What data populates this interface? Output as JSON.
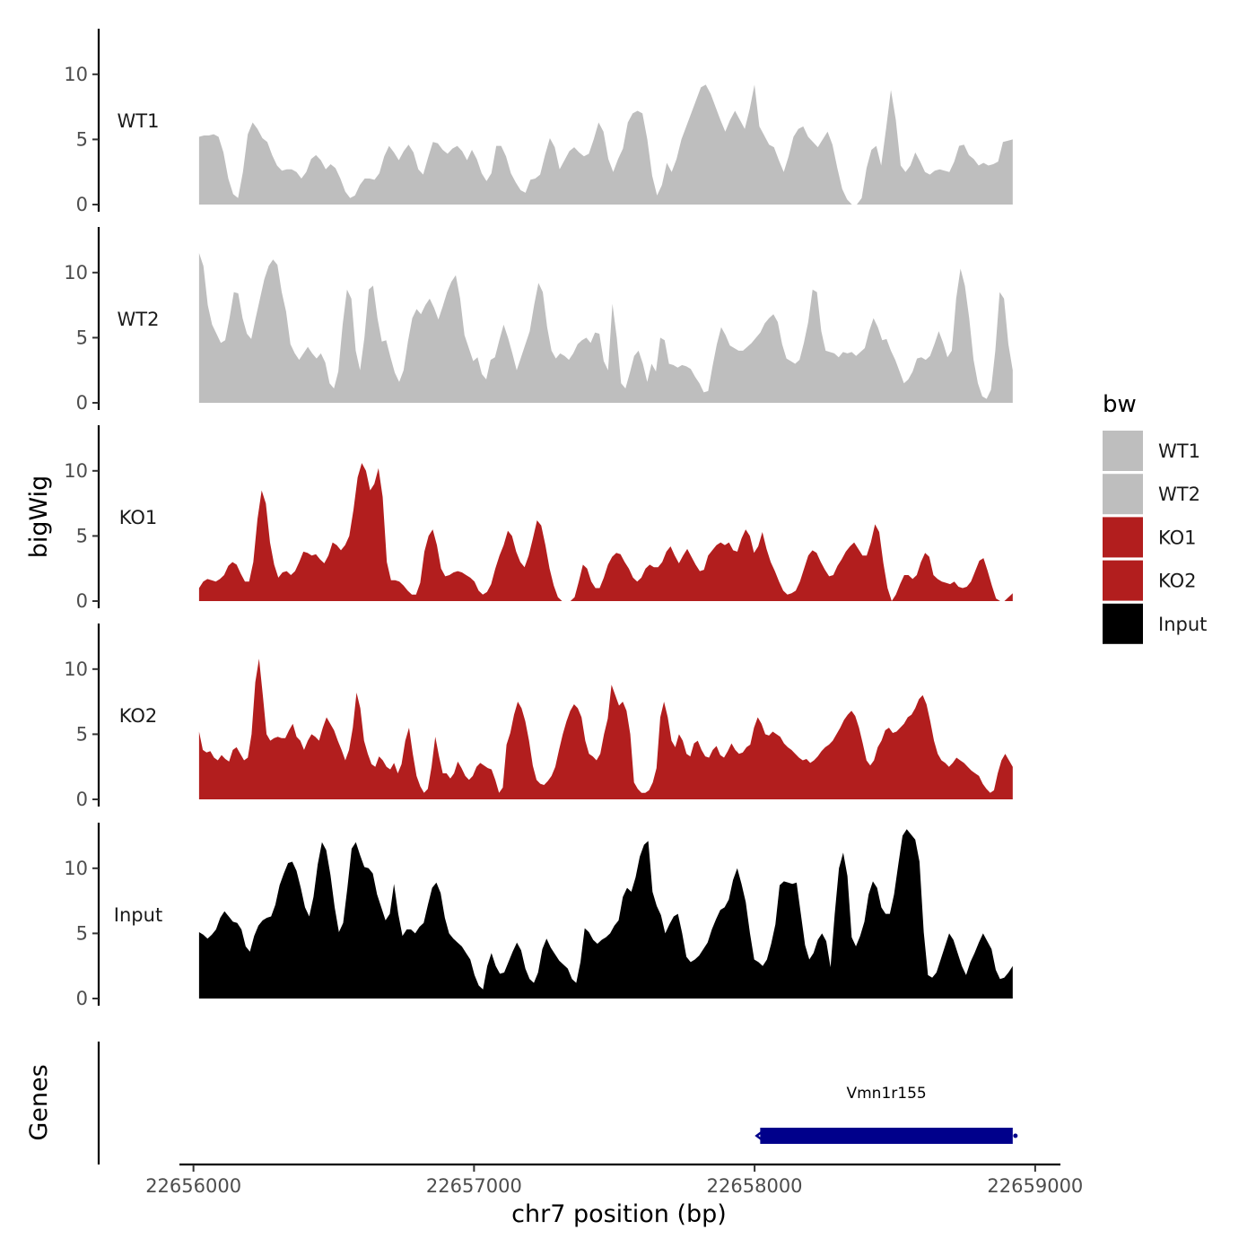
{
  "chart_data": {
    "type": "area",
    "chromosome": "chr7",
    "xlabel": "chr7 position (bp)",
    "ylabel": "bigWig",
    "genes_axis_label": "Genes",
    "xlim": [
      22655950,
      22659090
    ],
    "x_ticks": [
      22656000,
      22657000,
      22658000,
      22659000
    ],
    "x_tick_labels": [
      "22656000",
      "22657000",
      "22658000",
      "22659000"
    ],
    "ylim": [
      0,
      13.5
    ],
    "y_ticks": [
      0,
      5,
      10
    ],
    "y_tick_labels": [
      "0",
      "5",
      "10"
    ],
    "x_start": 22656020,
    "x_end": 22658920,
    "legend": {
      "title": "bw",
      "position": "right",
      "entries": [
        {
          "label": "WT1",
          "color": "#bebebe"
        },
        {
          "label": "WT2",
          "color": "#bebebe"
        },
        {
          "label": "KO1",
          "color": "#b21e1e"
        },
        {
          "label": "KO2",
          "color": "#b21e1e"
        },
        {
          "label": "Input",
          "color": "#000000"
        }
      ]
    },
    "series": [
      {
        "name": "WT1",
        "color": "#bebebe",
        "values": [
          5.2,
          5.3,
          5.3,
          5.4,
          5.2,
          4.0,
          2.0,
          0.8,
          0.5,
          2.5,
          5.4,
          6.3,
          5.8,
          5.1,
          4.8,
          3.8,
          3.0,
          2.6,
          2.7,
          2.7,
          2.5,
          2.0,
          2.5,
          3.5,
          3.8,
          3.4,
          2.7,
          3.1,
          2.8,
          2.0,
          1.0,
          0.5,
          0.7,
          1.5,
          2.0,
          2.0,
          1.9,
          2.4,
          3.7,
          4.5,
          4.0,
          3.4,
          4.1,
          4.6,
          4.0,
          2.7,
          2.3,
          3.6,
          4.8,
          4.7,
          4.2,
          3.9,
          4.3,
          4.5,
          4.1,
          3.4,
          4.2,
          3.5,
          2.4,
          1.8,
          2.4,
          4.5,
          4.5,
          3.7,
          2.4,
          1.7,
          1.1,
          0.9,
          1.9,
          2.0,
          2.3,
          3.8,
          5.1,
          4.4,
          2.7,
          3.4,
          4.1,
          4.4,
          4.0,
          3.7,
          3.9,
          5.0,
          6.3,
          5.6,
          3.5,
          2.5,
          3.5,
          4.3,
          6.3,
          7.0,
          7.2,
          7.0,
          5.0,
          2.2,
          0.7,
          1.5,
          3.2,
          2.5,
          3.5,
          5.0,
          6.0,
          7.0,
          8.0,
          9.0,
          9.2,
          8.5,
          7.5,
          6.5,
          5.6,
          6.5,
          7.2,
          6.5,
          5.8,
          7.3,
          9.2,
          6.0,
          5.3,
          4.6,
          4.4,
          3.4,
          2.5,
          3.7,
          5.2,
          5.8,
          6.0,
          5.2,
          4.8,
          4.4,
          5.0,
          5.6,
          4.6,
          2.8,
          1.2,
          0.4,
          0.0,
          0.0,
          0.5,
          2.8,
          4.2,
          4.5,
          3.0,
          5.8,
          8.8,
          6.5,
          3.0,
          2.5,
          3.0,
          4.0,
          3.3,
          2.5,
          2.3,
          2.6,
          2.7,
          2.6,
          2.5,
          3.3,
          4.5,
          4.6,
          3.8,
          3.5,
          3.0,
          3.2,
          3.0,
          3.1,
          3.3,
          4.8,
          4.9,
          5.0
        ]
      },
      {
        "name": "WT2",
        "color": "#bebebe",
        "values": [
          11.5,
          10.5,
          7.5,
          6.0,
          5.3,
          4.6,
          4.8,
          6.5,
          8.5,
          8.4,
          6.5,
          5.3,
          4.9,
          6.5,
          8.0,
          9.5,
          10.5,
          11.0,
          10.6,
          8.5,
          7.0,
          4.5,
          3.8,
          3.3,
          3.8,
          4.3,
          3.8,
          3.4,
          3.8,
          3.1,
          1.5,
          1.1,
          2.4,
          6.0,
          8.7,
          8.0,
          4.0,
          2.5,
          5.0,
          8.7,
          9.0,
          6.5,
          4.7,
          4.8,
          3.5,
          2.3,
          1.6,
          2.5,
          4.7,
          6.5,
          7.2,
          6.8,
          7.5,
          8.0,
          7.3,
          6.4,
          7.4,
          8.5,
          9.3,
          9.8,
          8.0,
          5.2,
          4.2,
          3.2,
          3.5,
          2.2,
          1.8,
          3.3,
          3.5,
          4.8,
          6.0,
          5.0,
          3.8,
          2.5,
          3.5,
          4.5,
          5.5,
          7.5,
          9.2,
          8.5,
          5.8,
          4.0,
          3.4,
          3.8,
          3.6,
          3.3,
          3.8,
          4.5,
          4.8,
          5.0,
          4.6,
          5.4,
          5.3,
          3.2,
          2.5,
          7.6,
          5.0,
          1.5,
          1.1,
          2.3,
          3.6,
          4.0,
          3.0,
          1.6,
          3.0,
          2.4,
          5.0,
          4.8,
          3.0,
          2.9,
          2.7,
          2.9,
          2.8,
          2.6,
          2.0,
          1.5,
          0.8,
          0.9,
          2.8,
          4.5,
          5.8,
          5.2,
          4.4,
          4.2,
          4.0,
          4.0,
          4.3,
          4.6,
          5.0,
          5.4,
          6.1,
          6.5,
          6.8,
          6.2,
          4.5,
          3.4,
          3.2,
          3.0,
          3.3,
          4.6,
          6.2,
          8.7,
          8.5,
          5.5,
          4.0,
          3.9,
          3.8,
          3.5,
          3.9,
          3.8,
          3.9,
          3.6,
          3.9,
          4.2,
          5.5,
          6.5,
          5.8,
          4.8,
          4.9,
          4.0,
          3.3,
          2.4,
          1.5,
          1.8,
          2.4,
          3.4,
          3.5,
          3.3,
          3.6,
          4.5,
          5.5,
          4.6,
          3.5,
          4.0,
          8.0,
          10.3,
          9.0,
          6.5,
          3.3,
          1.5,
          0.5,
          0.3,
          1.0,
          4.0,
          8.5,
          8.0,
          4.5,
          2.5
        ]
      },
      {
        "name": "KO1",
        "color": "#b21e1e",
        "values": [
          1.0,
          1.5,
          1.7,
          1.6,
          1.5,
          1.7,
          2.0,
          2.7,
          3.0,
          2.8,
          2.1,
          1.5,
          1.5,
          3.0,
          6.3,
          8.5,
          7.5,
          4.5,
          2.8,
          1.8,
          2.2,
          2.3,
          2.0,
          2.3,
          3.0,
          3.8,
          3.7,
          3.5,
          3.6,
          3.2,
          2.9,
          3.5,
          4.5,
          4.3,
          3.9,
          4.3,
          5.0,
          7.0,
          9.5,
          10.6,
          10.0,
          8.5,
          9.0,
          10.2,
          8.0,
          3.0,
          1.6,
          1.6,
          1.5,
          1.2,
          0.8,
          0.5,
          0.5,
          1.4,
          3.8,
          5.0,
          5.5,
          4.3,
          2.5,
          1.9,
          2.0,
          2.2,
          2.3,
          2.2,
          2.0,
          1.8,
          1.5,
          0.8,
          0.5,
          0.7,
          1.3,
          2.5,
          3.5,
          4.3,
          5.4,
          5.0,
          3.8,
          3.0,
          2.6,
          3.5,
          4.8,
          6.2,
          5.8,
          4.3,
          2.5,
          1.2,
          0.3,
          0.0,
          0.0,
          0.0,
          0.3,
          1.5,
          2.8,
          2.5,
          1.5,
          1.0,
          1.0,
          1.8,
          2.8,
          3.4,
          3.7,
          3.6,
          3.0,
          2.5,
          1.8,
          1.5,
          1.8,
          2.5,
          2.8,
          2.6,
          2.6,
          3.0,
          3.8,
          4.2,
          3.5,
          2.9,
          3.5,
          4.0,
          3.4,
          2.8,
          2.3,
          2.4,
          3.5,
          3.9,
          4.3,
          4.5,
          4.3,
          4.5,
          3.9,
          3.8,
          4.8,
          5.5,
          5.0,
          3.7,
          4.2,
          5.3,
          4.0,
          3.0,
          2.3,
          1.5,
          0.8,
          0.5,
          0.6,
          0.8,
          1.5,
          2.5,
          3.5,
          3.9,
          3.7,
          3.0,
          2.4,
          1.9,
          2.0,
          2.7,
          3.2,
          3.8,
          4.2,
          4.5,
          4.0,
          3.5,
          3.5,
          4.5,
          5.9,
          5.3,
          2.9,
          1.0,
          0.0,
          0.5,
          1.3,
          2.0,
          2.0,
          1.7,
          2.0,
          3.0,
          3.7,
          3.4,
          2.0,
          1.7,
          1.5,
          1.4,
          1.3,
          1.5,
          1.1,
          1.0,
          1.1,
          1.5,
          2.3,
          3.1,
          3.3,
          2.3,
          1.2,
          0.2,
          0.0,
          0.0,
          0.3,
          0.6
        ]
      },
      {
        "name": "KO2",
        "color": "#b21e1e",
        "values": [
          5.2,
          3.8,
          3.6,
          3.7,
          3.2,
          3.0,
          3.4,
          3.1,
          2.9,
          3.8,
          4.0,
          3.5,
          3.0,
          3.2,
          5.0,
          9.0,
          10.8,
          8.0,
          5.0,
          4.5,
          4.7,
          4.8,
          4.7,
          4.7,
          5.3,
          5.8,
          4.8,
          4.5,
          3.8,
          4.5,
          5.0,
          4.8,
          4.5,
          5.5,
          6.3,
          5.8,
          5.3,
          4.5,
          3.8,
          3.0,
          3.8,
          5.5,
          8.2,
          7.0,
          4.5,
          3.5,
          2.7,
          2.5,
          3.3,
          3.0,
          2.5,
          2.3,
          2.8,
          2.0,
          2.7,
          4.5,
          5.5,
          3.5,
          1.8,
          1.0,
          0.5,
          0.8,
          2.5,
          4.8,
          3.3,
          2.0,
          2.0,
          1.6,
          2.0,
          2.9,
          2.4,
          1.8,
          1.5,
          1.8,
          2.5,
          2.8,
          2.6,
          2.4,
          2.3,
          1.5,
          0.5,
          0.9,
          4.2,
          5.1,
          6.5,
          7.5,
          7.0,
          6.0,
          4.5,
          2.6,
          1.5,
          1.2,
          1.1,
          1.4,
          1.8,
          2.5,
          3.8,
          5.0,
          6.0,
          6.8,
          7.3,
          7.0,
          6.3,
          4.5,
          3.5,
          3.3,
          3.0,
          3.5,
          5.0,
          6.2,
          8.8,
          8.0,
          7.2,
          7.5,
          6.8,
          5.0,
          1.3,
          0.8,
          0.5,
          0.5,
          0.7,
          1.3,
          2.4,
          6.3,
          7.5,
          6.3,
          4.5,
          4.0,
          5.0,
          4.5,
          3.5,
          3.3,
          4.3,
          4.5,
          3.8,
          3.3,
          3.2,
          3.8,
          4.1,
          3.4,
          3.2,
          3.7,
          4.3,
          3.8,
          3.5,
          3.6,
          4.0,
          4.2,
          5.5,
          6.3,
          5.8,
          5.0,
          4.9,
          5.2,
          5.0,
          4.8,
          4.3,
          4.0,
          3.8,
          3.5,
          3.2,
          3.0,
          3.1,
          2.8,
          3.0,
          3.3,
          3.7,
          4.0,
          4.2,
          4.5,
          5.0,
          5.5,
          6.1,
          6.5,
          6.8,
          6.4,
          5.5,
          4.3,
          3.0,
          2.6,
          3.0,
          4.0,
          4.5,
          5.3,
          5.5,
          5.1,
          5.2,
          5.5,
          5.8,
          6.3,
          6.5,
          7.0,
          7.7,
          8.0,
          7.3,
          6.0,
          4.5,
          3.5,
          3.0,
          2.8,
          2.5,
          2.8,
          3.2,
          3.0,
          2.8,
          2.5,
          2.2,
          2.0,
          1.8,
          1.2,
          0.8,
          0.5,
          0.7,
          2.0,
          3.0,
          3.5,
          3.0,
          2.5
        ]
      },
      {
        "name": "Input",
        "color": "#000000",
        "values": [
          5.1,
          4.9,
          4.6,
          4.9,
          5.3,
          6.2,
          6.7,
          6.3,
          5.9,
          5.8,
          5.3,
          4.0,
          3.6,
          4.8,
          5.6,
          6.0,
          6.2,
          6.3,
          7.2,
          8.7,
          9.6,
          10.4,
          10.5,
          9.8,
          8.5,
          7.0,
          6.3,
          7.8,
          10.3,
          12.0,
          11.4,
          9.5,
          7.0,
          5.1,
          5.8,
          8.5,
          11.5,
          12.0,
          11.0,
          10.1,
          10.0,
          9.6,
          8.0,
          7.0,
          6.0,
          6.5,
          8.8,
          6.5,
          4.8,
          5.3,
          5.3,
          5.0,
          5.5,
          5.8,
          7.2,
          8.5,
          8.9,
          8.1,
          6.2,
          5.0,
          4.6,
          4.3,
          4.0,
          3.5,
          3.0,
          1.8,
          1.0,
          0.7,
          2.5,
          3.5,
          2.5,
          1.9,
          2.0,
          2.8,
          3.6,
          4.3,
          3.7,
          2.3,
          1.5,
          1.2,
          2.0,
          3.8,
          4.6,
          3.9,
          3.4,
          2.9,
          2.6,
          2.3,
          1.5,
          1.2,
          2.8,
          5.4,
          5.1,
          4.5,
          4.2,
          4.5,
          4.7,
          5.0,
          5.6,
          6.0,
          7.8,
          8.5,
          8.2,
          9.3,
          10.9,
          11.8,
          12.1,
          8.2,
          7.1,
          6.4,
          5.0,
          5.7,
          6.3,
          6.5,
          5.0,
          3.2,
          2.8,
          3.0,
          3.3,
          3.8,
          4.3,
          5.3,
          6.1,
          6.8,
          7.0,
          7.6,
          9.1,
          10.0,
          8.8,
          7.4,
          5.0,
          3.0,
          2.8,
          2.5,
          3.0,
          4.2,
          5.7,
          8.7,
          9.0,
          8.9,
          8.8,
          8.9,
          6.5,
          4.1,
          3.0,
          3.5,
          4.5,
          5.0,
          4.4,
          2.4,
          6.5,
          10.0,
          11.2,
          9.4,
          4.7,
          4.0,
          4.8,
          5.9,
          8.0,
          9.0,
          8.5,
          7.0,
          6.5,
          6.5,
          8.0,
          10.3,
          12.5,
          13.0,
          12.6,
          12.2,
          10.5,
          5.1,
          1.8,
          1.6,
          2.0,
          3.0,
          4.0,
          5.0,
          4.5,
          3.5,
          2.5,
          1.8,
          2.8,
          3.5,
          4.3,
          5.0,
          4.4,
          3.8,
          2.2,
          1.5,
          1.6,
          2.0,
          2.5
        ]
      }
    ],
    "genes": [
      {
        "name": "Vmn1r155",
        "start": 22658020,
        "end": 22658920,
        "strand": "-",
        "color": "#00008b"
      }
    ]
  }
}
